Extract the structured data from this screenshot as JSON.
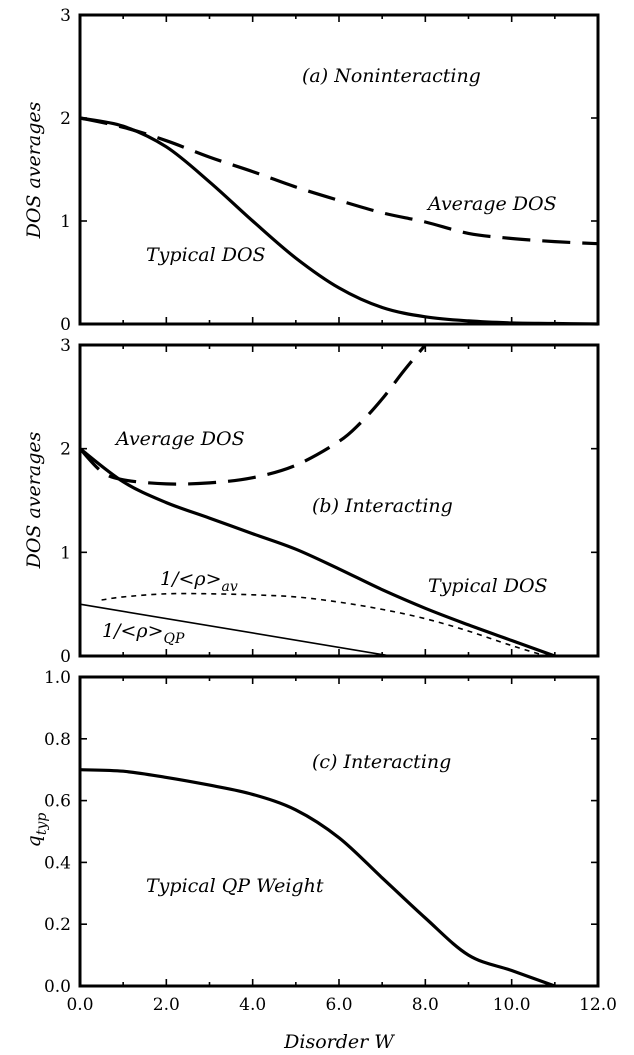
{
  "chart_data": [
    {
      "type": "line",
      "panel_label": "(a) Noninteracting",
      "ylabel": "DOS averages",
      "xlim": [
        0,
        12
      ],
      "ylim": [
        0,
        3
      ],
      "yticks": [
        "0",
        "1",
        "2",
        "3"
      ],
      "annotations": [
        {
          "id": "avg",
          "text": "Average DOS"
        },
        {
          "id": "typ",
          "text": "Typical DOS"
        }
      ],
      "series": [
        {
          "id": "average",
          "style": "dashed",
          "width": 3.2,
          "x": [
            0,
            1,
            2,
            3,
            4,
            5,
            6,
            7,
            8,
            9,
            10,
            11,
            12
          ],
          "y": [
            2.0,
            1.91,
            1.78,
            1.62,
            1.48,
            1.33,
            1.2,
            1.08,
            0.99,
            0.88,
            0.83,
            0.8,
            0.78
          ]
        },
        {
          "id": "typical",
          "style": "solid",
          "width": 3.2,
          "x": [
            0,
            1,
            2,
            3,
            4,
            5,
            6,
            7,
            8,
            9,
            10,
            11,
            12
          ],
          "y": [
            2.0,
            1.92,
            1.72,
            1.38,
            1.0,
            0.64,
            0.35,
            0.16,
            0.07,
            0.03,
            0.01,
            0.005,
            0.0
          ]
        }
      ]
    },
    {
      "type": "line",
      "panel_label": "(b) Interacting",
      "ylabel": "DOS averages",
      "xlim": [
        0,
        12
      ],
      "ylim": [
        0,
        3
      ],
      "yticks": [
        "0",
        "1",
        "2",
        "3"
      ],
      "annotations": [
        {
          "id": "avg",
          "text": "Average DOS"
        },
        {
          "id": "typ",
          "text": "Typical DOS"
        },
        {
          "id": "rho_av",
          "text": "1/<ρ>",
          "sub": "av"
        },
        {
          "id": "rho_qp",
          "text": "1/<ρ>",
          "sub": "QP"
        }
      ],
      "series": [
        {
          "id": "average",
          "style": "dashed",
          "width": 3.2,
          "x": [
            0,
            0.5,
            1,
            2,
            3,
            4,
            5,
            6,
            6.5,
            7,
            7.5,
            8
          ],
          "y": [
            2.0,
            1.78,
            1.7,
            1.66,
            1.67,
            1.72,
            1.84,
            2.07,
            2.25,
            2.48,
            2.75,
            3.0
          ]
        },
        {
          "id": "typical",
          "style": "solid",
          "width": 3.2,
          "x": [
            0,
            1,
            2,
            3,
            4,
            5,
            6,
            7,
            8,
            9,
            10,
            11
          ],
          "y": [
            2.0,
            1.68,
            1.48,
            1.33,
            1.18,
            1.03,
            0.84,
            0.64,
            0.46,
            0.3,
            0.15,
            0.0
          ]
        },
        {
          "id": "inv_rho_av",
          "style": "dotted",
          "width": 1.6,
          "x": [
            0.5,
            1,
            2,
            3,
            4,
            5,
            6,
            7,
            8,
            9,
            10,
            10.8
          ],
          "y": [
            0.54,
            0.57,
            0.6,
            0.6,
            0.59,
            0.57,
            0.52,
            0.45,
            0.36,
            0.24,
            0.1,
            0.0
          ]
        },
        {
          "id": "inv_rho_qp",
          "style": "solid",
          "width": 1.6,
          "x": [
            0,
            7.2
          ],
          "y": [
            0.5,
            0.0
          ]
        }
      ]
    },
    {
      "type": "line",
      "panel_label": "(c) Interacting",
      "ylabel": "q",
      "ylabel_sub": "typ",
      "xlabel": "Disorder W",
      "xlim": [
        0,
        12
      ],
      "ylim": [
        0,
        1
      ],
      "yticks": [
        "0.0",
        "0.2",
        "0.4",
        "0.6",
        "0.8",
        "1.0"
      ],
      "xticks": [
        "0.0",
        "2.0",
        "4.0",
        "6.0",
        "8.0",
        "10.0",
        "12.0"
      ],
      "annotations": [
        {
          "id": "typ",
          "text": "Typical QP Weight"
        }
      ],
      "series": [
        {
          "id": "typical_qp",
          "style": "solid",
          "width": 3.2,
          "x": [
            0,
            1,
            2,
            3,
            4,
            5,
            6,
            7,
            8,
            9,
            10,
            11
          ],
          "y": [
            0.7,
            0.695,
            0.675,
            0.65,
            0.62,
            0.57,
            0.48,
            0.35,
            0.22,
            0.1,
            0.05,
            0.0
          ]
        }
      ]
    }
  ]
}
